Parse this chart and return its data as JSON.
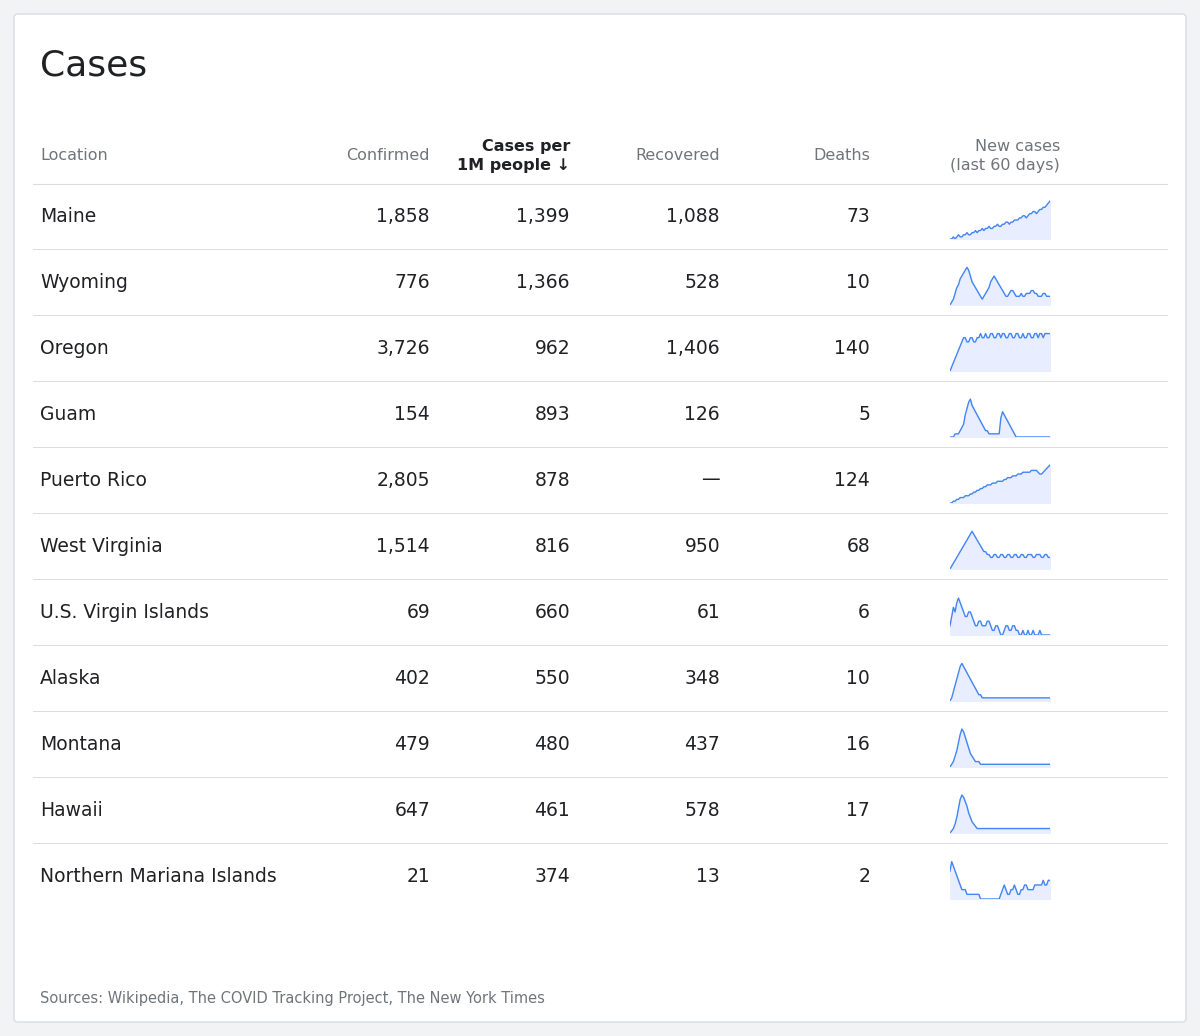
{
  "title": "Cases",
  "headers": [
    "Location",
    "Confirmed",
    "Cases per\n1M people ↓",
    "Recovered",
    "Deaths",
    "New cases\n(last 60 days)"
  ],
  "rows": [
    [
      "Maine",
      "1,858",
      "1,399",
      "1,088",
      "73"
    ],
    [
      "Wyoming",
      "776",
      "1,366",
      "528",
      "10"
    ],
    [
      "Oregon",
      "3,726",
      "962",
      "1,406",
      "140"
    ],
    [
      "Guam",
      "154",
      "893",
      "126",
      "5"
    ],
    [
      "Puerto Rico",
      "2,805",
      "878",
      "—",
      "124"
    ],
    [
      "West Virginia",
      "1,514",
      "816",
      "950",
      "68"
    ],
    [
      "U.S. Virgin Islands",
      "69",
      "660",
      "61",
      "6"
    ],
    [
      "Alaska",
      "402",
      "550",
      "348",
      "10"
    ],
    [
      "Montana",
      "479",
      "480",
      "437",
      "16"
    ],
    [
      "Hawaii",
      "647",
      "461",
      "578",
      "17"
    ],
    [
      "Northern Mariana Islands",
      "21",
      "374",
      "13",
      "2"
    ]
  ],
  "sparklines": {
    "Maine": [
      0,
      1,
      2,
      3,
      4,
      5,
      6,
      7,
      8,
      9,
      10,
      11,
      12,
      13,
      14,
      15,
      16,
      17,
      18,
      19,
      20,
      21,
      22,
      23,
      24,
      25,
      26,
      27,
      28,
      29,
      30,
      31,
      32,
      33,
      34,
      35,
      36,
      37,
      38,
      39,
      40,
      41,
      42,
      43,
      44,
      45,
      46,
      47,
      48,
      49,
      50,
      51,
      52,
      53,
      54,
      55,
      56,
      57,
      58,
      59
    ],
    "Maine_y": [
      1,
      1,
      2,
      1,
      2,
      3,
      2,
      2,
      3,
      3,
      4,
      3,
      3,
      4,
      4,
      5,
      4,
      5,
      5,
      6,
      5,
      6,
      6,
      7,
      6,
      6,
      7,
      7,
      8,
      7,
      7,
      8,
      8,
      9,
      9,
      8,
      9,
      9,
      10,
      10,
      10,
      11,
      11,
      12,
      12,
      11,
      12,
      13,
      13,
      14,
      14,
      13,
      14,
      15,
      15,
      16,
      16,
      17,
      18,
      19
    ],
    "Wyoming": [
      0,
      1,
      2,
      3,
      4,
      5,
      6,
      7,
      8,
      9,
      10,
      11,
      12,
      13,
      14,
      15,
      16,
      17,
      18,
      19,
      20,
      21,
      22,
      23,
      24,
      25,
      26,
      27,
      28,
      29,
      30,
      31,
      32,
      33,
      34,
      35,
      36,
      37,
      38,
      39,
      40,
      41,
      42,
      43,
      44,
      45,
      46,
      47,
      48,
      49,
      50,
      51,
      52,
      53,
      54,
      55,
      56,
      57,
      58,
      59
    ],
    "Wyoming_y": [
      2,
      3,
      4,
      6,
      8,
      9,
      11,
      12,
      13,
      14,
      15,
      14,
      12,
      10,
      9,
      8,
      7,
      6,
      5,
      4,
      5,
      6,
      7,
      8,
      10,
      11,
      12,
      11,
      10,
      9,
      8,
      7,
      6,
      5,
      5,
      6,
      7,
      7,
      6,
      5,
      5,
      5,
      6,
      5,
      5,
      6,
      6,
      6,
      7,
      7,
      6,
      6,
      5,
      5,
      5,
      6,
      6,
      5,
      5,
      5
    ],
    "Oregon": [
      0,
      1,
      2,
      3,
      4,
      5,
      6,
      7,
      8,
      9,
      10,
      11,
      12,
      13,
      14,
      15,
      16,
      17,
      18,
      19,
      20,
      21,
      22,
      23,
      24,
      25,
      26,
      27,
      28,
      29,
      30,
      31,
      32,
      33,
      34,
      35,
      36,
      37,
      38,
      39,
      40,
      41,
      42,
      43,
      44,
      45,
      46,
      47,
      48,
      49,
      50,
      51,
      52,
      53,
      54,
      55,
      56,
      57,
      58,
      59
    ],
    "Oregon_y": [
      2,
      3,
      4,
      5,
      6,
      7,
      8,
      9,
      10,
      10,
      9,
      9,
      10,
      10,
      9,
      9,
      10,
      10,
      11,
      10,
      10,
      11,
      10,
      10,
      11,
      11,
      10,
      10,
      11,
      11,
      10,
      11,
      11,
      10,
      10,
      11,
      11,
      10,
      10,
      11,
      11,
      10,
      10,
      11,
      10,
      10,
      11,
      11,
      10,
      10,
      11,
      11,
      10,
      11,
      11,
      10,
      11,
      11,
      11,
      11
    ],
    "Guam": [
      0,
      1,
      2,
      3,
      4,
      5,
      6,
      7,
      8,
      9,
      10,
      11,
      12,
      13,
      14,
      15,
      16,
      17,
      18,
      19,
      20,
      21,
      22,
      23,
      24,
      25,
      26,
      27,
      28,
      29,
      30,
      31,
      32,
      33,
      34,
      35,
      36,
      37,
      38,
      39,
      40,
      41,
      42,
      43,
      44,
      45,
      46,
      47,
      48,
      49,
      50,
      51,
      52,
      53,
      54,
      55,
      56,
      57,
      58,
      59
    ],
    "Guam_y": [
      1,
      1,
      1,
      2,
      2,
      2,
      3,
      4,
      5,
      8,
      10,
      12,
      13,
      11,
      10,
      9,
      8,
      7,
      6,
      5,
      4,
      3,
      3,
      2,
      2,
      2,
      2,
      2,
      2,
      2,
      7,
      9,
      8,
      7,
      6,
      5,
      4,
      3,
      2,
      1,
      1,
      1,
      1,
      1,
      1,
      1,
      1,
      1,
      1,
      1,
      1,
      1,
      1,
      1,
      1,
      1,
      1,
      1,
      1,
      1
    ],
    "Puerto Rico": [
      0,
      1,
      2,
      3,
      4,
      5,
      6,
      7,
      8,
      9,
      10,
      11,
      12,
      13,
      14,
      15,
      16,
      17,
      18,
      19,
      20,
      21,
      22,
      23,
      24,
      25,
      26,
      27,
      28,
      29,
      30,
      31,
      32,
      33,
      34,
      35,
      36,
      37,
      38,
      39,
      40,
      41,
      42,
      43,
      44,
      45,
      46,
      47,
      48,
      49,
      50,
      51,
      52,
      53,
      54,
      55,
      56,
      57,
      58,
      59
    ],
    "Puerto Rico_y": [
      1,
      1,
      2,
      2,
      3,
      3,
      4,
      4,
      4,
      5,
      5,
      5,
      6,
      6,
      7,
      7,
      8,
      8,
      9,
      9,
      10,
      10,
      11,
      11,
      11,
      12,
      12,
      12,
      13,
      13,
      13,
      13,
      14,
      14,
      15,
      15,
      15,
      16,
      16,
      16,
      17,
      17,
      17,
      18,
      18,
      18,
      18,
      18,
      19,
      19,
      19,
      19,
      18,
      17,
      17,
      18,
      19,
      20,
      21,
      22
    ],
    "West Virginia": [
      0,
      1,
      2,
      3,
      4,
      5,
      6,
      7,
      8,
      9,
      10,
      11,
      12,
      13,
      14,
      15,
      16,
      17,
      18,
      19,
      20,
      21,
      22,
      23,
      24,
      25,
      26,
      27,
      28,
      29,
      30,
      31,
      32,
      33,
      34,
      35,
      36,
      37,
      38,
      39,
      40,
      41,
      42,
      43,
      44,
      45,
      46,
      47,
      48,
      49,
      50,
      51,
      52,
      53,
      54,
      55,
      56,
      57,
      58,
      59
    ],
    "West Virginia_y": [
      2,
      3,
      4,
      5,
      6,
      7,
      8,
      9,
      10,
      11,
      12,
      13,
      14,
      15,
      14,
      13,
      12,
      11,
      10,
      9,
      8,
      8,
      7,
      7,
      6,
      6,
      7,
      7,
      6,
      6,
      7,
      7,
      6,
      6,
      7,
      7,
      6,
      6,
      7,
      7,
      6,
      6,
      7,
      7,
      6,
      6,
      7,
      7,
      7,
      6,
      6,
      7,
      7,
      7,
      6,
      6,
      7,
      7,
      6,
      6
    ],
    "U.S. Virgin Islands": [
      0,
      1,
      2,
      3,
      4,
      5,
      6,
      7,
      8,
      9,
      10,
      11,
      12,
      13,
      14,
      15,
      16,
      17,
      18,
      19,
      20,
      21,
      22,
      23,
      24,
      25,
      26,
      27,
      28,
      29,
      30,
      31,
      32,
      33,
      34,
      35,
      36,
      37,
      38,
      39,
      40,
      41,
      42,
      43,
      44,
      45,
      46,
      47,
      48,
      49,
      50,
      51,
      52,
      53,
      54,
      55,
      56,
      57,
      58,
      59
    ],
    "U.S. Virgin Islands_y": [
      5,
      7,
      9,
      8,
      10,
      11,
      10,
      9,
      8,
      7,
      7,
      8,
      8,
      7,
      6,
      5,
      5,
      6,
      6,
      5,
      5,
      5,
      6,
      6,
      5,
      4,
      4,
      5,
      5,
      4,
      3,
      3,
      4,
      5,
      5,
      4,
      4,
      5,
      5,
      4,
      4,
      3,
      3,
      4,
      3,
      3,
      4,
      3,
      3,
      4,
      3,
      3,
      3,
      4,
      3,
      3,
      3,
      3,
      3,
      3
    ],
    "Alaska": [
      0,
      1,
      2,
      3,
      4,
      5,
      6,
      7,
      8,
      9,
      10,
      11,
      12,
      13,
      14,
      15,
      16,
      17,
      18,
      19,
      20,
      21,
      22,
      23,
      24,
      25,
      26,
      27,
      28,
      29,
      30,
      31,
      32,
      33,
      34,
      35,
      36,
      37,
      38,
      39,
      40,
      41,
      42,
      43,
      44,
      45,
      46,
      47,
      48,
      49,
      50,
      51,
      52,
      53,
      54,
      55,
      56,
      57,
      58,
      59
    ],
    "Alaska_y": [
      2,
      3,
      5,
      7,
      9,
      11,
      13,
      14,
      13,
      12,
      11,
      10,
      9,
      8,
      7,
      6,
      5,
      4,
      4,
      3,
      3,
      3,
      3,
      3,
      3,
      3,
      3,
      3,
      3,
      3,
      3,
      3,
      3,
      3,
      3,
      3,
      3,
      3,
      3,
      3,
      3,
      3,
      3,
      3,
      3,
      3,
      3,
      3,
      3,
      3,
      3,
      3,
      3,
      3,
      3,
      3,
      3,
      3,
      3,
      3
    ],
    "Montana": [
      0,
      1,
      2,
      3,
      4,
      5,
      6,
      7,
      8,
      9,
      10,
      11,
      12,
      13,
      14,
      15,
      16,
      17,
      18,
      19,
      20,
      21,
      22,
      23,
      24,
      25,
      26,
      27,
      28,
      29,
      30,
      31,
      32,
      33,
      34,
      35,
      36,
      37,
      38,
      39,
      40,
      41,
      42,
      43,
      44,
      45,
      46,
      47,
      48,
      49,
      50,
      51,
      52,
      53,
      54,
      55,
      56,
      57,
      58,
      59
    ],
    "Montana_y": [
      1,
      2,
      3,
      5,
      7,
      10,
      13,
      15,
      14,
      12,
      10,
      8,
      6,
      5,
      4,
      3,
      3,
      3,
      2,
      2,
      2,
      2,
      2,
      2,
      2,
      2,
      2,
      2,
      2,
      2,
      2,
      2,
      2,
      2,
      2,
      2,
      2,
      2,
      2,
      2,
      2,
      2,
      2,
      2,
      2,
      2,
      2,
      2,
      2,
      2,
      2,
      2,
      2,
      2,
      2,
      2,
      2,
      2,
      2,
      2
    ],
    "Hawaii": [
      0,
      1,
      2,
      3,
      4,
      5,
      6,
      7,
      8,
      9,
      10,
      11,
      12,
      13,
      14,
      15,
      16,
      17,
      18,
      19,
      20,
      21,
      22,
      23,
      24,
      25,
      26,
      27,
      28,
      29,
      30,
      31,
      32,
      33,
      34,
      35,
      36,
      37,
      38,
      39,
      40,
      41,
      42,
      43,
      44,
      45,
      46,
      47,
      48,
      49,
      50,
      51,
      52,
      53,
      54,
      55,
      56,
      57,
      58,
      59
    ],
    "Hawaii_y": [
      1,
      2,
      3,
      5,
      8,
      12,
      16,
      18,
      17,
      15,
      13,
      10,
      8,
      6,
      5,
      4,
      3,
      3,
      3,
      3,
      3,
      3,
      3,
      3,
      3,
      3,
      3,
      3,
      3,
      3,
      3,
      3,
      3,
      3,
      3,
      3,
      3,
      3,
      3,
      3,
      3,
      3,
      3,
      3,
      3,
      3,
      3,
      3,
      3,
      3,
      3,
      3,
      3,
      3,
      3,
      3,
      3,
      3,
      3,
      3
    ],
    "Northern Mariana Islands": [
      0,
      1,
      2,
      3,
      4,
      5,
      6,
      7,
      8,
      9,
      10,
      11,
      12,
      13,
      14,
      15,
      16,
      17,
      18,
      19,
      20,
      21,
      22,
      23,
      24,
      25,
      26,
      27,
      28,
      29,
      30,
      31,
      32,
      33,
      34,
      35,
      36,
      37,
      38,
      39,
      40,
      41,
      42,
      43,
      44,
      45,
      46,
      47,
      48,
      49,
      50,
      51,
      52,
      53,
      54,
      55,
      56,
      57,
      58,
      59
    ],
    "Northern Mariana Islands_y": [
      8,
      10,
      9,
      8,
      7,
      6,
      5,
      4,
      4,
      4,
      3,
      3,
      3,
      3,
      3,
      3,
      3,
      3,
      2,
      2,
      2,
      2,
      2,
      2,
      2,
      2,
      2,
      2,
      2,
      2,
      3,
      4,
      5,
      4,
      3,
      3,
      4,
      4,
      5,
      4,
      3,
      3,
      4,
      4,
      5,
      5,
      4,
      4,
      4,
      4,
      5,
      5,
      5,
      5,
      5,
      6,
      5,
      5,
      6,
      6
    ]
  },
  "background_color": "#f1f3f4",
  "card_color": "#ffffff",
  "header_text_color": "#70757a",
  "row_text_color": "#202124",
  "divider_color": "#dadce0",
  "sparkline_color": "#4285f4",
  "sparkline_fill": "#e8eeff",
  "source_text_plain": "Sources: ",
  "source_links": [
    "Wikipedia",
    "The COVID Tracking Project",
    "The New York Times"
  ],
  "source_text_full": "Sources: Wikipedia, The COVID Tracking Project, The New York Times",
  "title_fontsize": 26,
  "header_fontsize": 11.5,
  "row_fontsize": 13.5
}
